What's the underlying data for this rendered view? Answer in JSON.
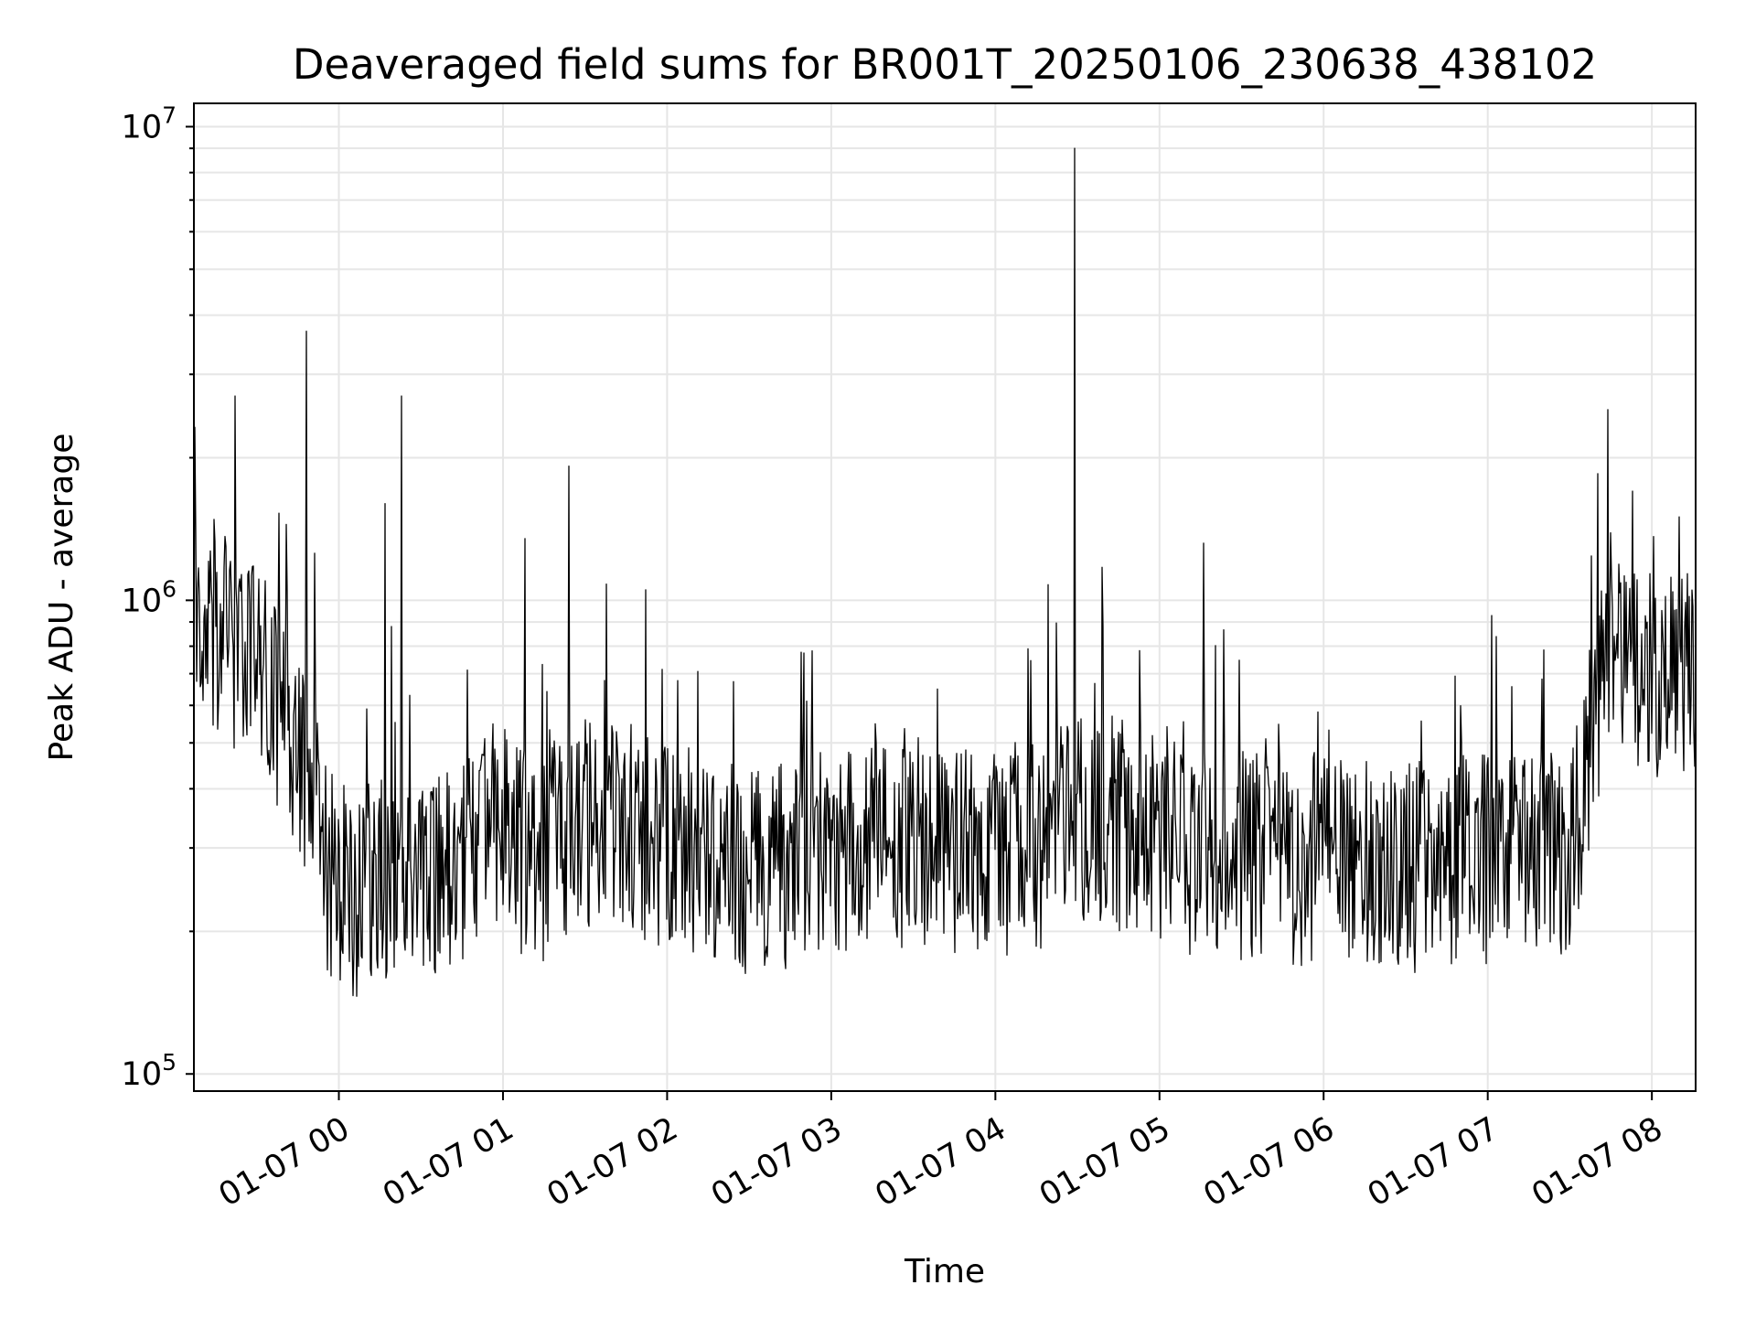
{
  "chart_data": {
    "type": "line",
    "title": "Deaveraged field sums for BR001T_20250106_230638_438102",
    "xlabel": "Time",
    "ylabel": "Peak ADU - average",
    "yscale": "log",
    "ylim": [
      92000,
      11200000
    ],
    "xlim": [
      "2025-01-06 23:07",
      "2025-01-07 08:16"
    ],
    "grid": true,
    "line_color": "#000000",
    "x_ticks": [
      {
        "value": "2025-01-07 00:00",
        "label": "01-07 00"
      },
      {
        "value": "2025-01-07 01:00",
        "label": "01-07 01"
      },
      {
        "value": "2025-01-07 02:00",
        "label": "01-07 02"
      },
      {
        "value": "2025-01-07 03:00",
        "label": "01-07 03"
      },
      {
        "value": "2025-01-07 04:00",
        "label": "01-07 04"
      },
      {
        "value": "2025-01-07 05:00",
        "label": "01-07 05"
      },
      {
        "value": "2025-01-07 06:00",
        "label": "01-07 06"
      },
      {
        "value": "2025-01-07 07:00",
        "label": "01-07 07"
      },
      {
        "value": "2025-01-07 08:00",
        "label": "01-07 08"
      }
    ],
    "y_ticks": [
      {
        "value": 100000,
        "base": "10",
        "exp": "5"
      },
      {
        "value": 1000000,
        "base": "10",
        "exp": "6"
      },
      {
        "value": 10000000,
        "base": "10",
        "exp": "7"
      }
    ],
    "series": [
      {
        "x": [
          "2025-01-06 23:07",
          "2025-01-06 23:15",
          "2025-01-06 23:25",
          "2025-01-06 23:35",
          "2025-01-06 23:42",
          "2025-01-06 23:50",
          "2025-01-06 23:56",
          "2025-01-07 00:05",
          "2025-01-07 00:15",
          "2025-01-07 00:25",
          "2025-01-07 00:35",
          "2025-01-07 00:45",
          "2025-01-07 00:55",
          "2025-01-07 01:05",
          "2025-01-07 01:15",
          "2025-01-07 01:25",
          "2025-01-07 01:35",
          "2025-01-07 01:45",
          "2025-01-07 01:55",
          "2025-01-07 02:10",
          "2025-01-07 02:30",
          "2025-01-07 02:50",
          "2025-01-07 03:10",
          "2025-01-07 03:30",
          "2025-01-07 03:50",
          "2025-01-07 04:10",
          "2025-01-07 04:30",
          "2025-01-07 04:50",
          "2025-01-07 05:10",
          "2025-01-07 05:30",
          "2025-01-07 05:50",
          "2025-01-07 06:10",
          "2025-01-07 06:30",
          "2025-01-07 06:50",
          "2025-01-07 07:05",
          "2025-01-07 07:20",
          "2025-01-07 07:30",
          "2025-01-07 07:38",
          "2025-01-07 07:46",
          "2025-01-07 07:55",
          "2025-01-07 08:05",
          "2025-01-07 08:16"
        ],
        "y": [
          900000,
          850000,
          750000,
          650000,
          520000,
          400000,
          260000,
          240000,
          250000,
          270000,
          260000,
          280000,
          350000,
          300000,
          290000,
          330000,
          340000,
          330000,
          310000,
          300000,
          270000,
          280000,
          300000,
          310000,
          290000,
          290000,
          350000,
          330000,
          300000,
          290000,
          280000,
          290000,
          270000,
          280000,
          290000,
          300000,
          280000,
          500000,
          900000,
          700000,
          650000,
          750000
        ]
      }
    ],
    "spikes": [
      {
        "x": "2025-01-06 23:22",
        "y": 2700000
      },
      {
        "x": "2025-01-06 23:48",
        "y": 3700000
      },
      {
        "x": "2025-01-07 00:17",
        "y": 1600000
      },
      {
        "x": "2025-01-07 00:23",
        "y": 2700000
      },
      {
        "x": "2025-01-07 01:08",
        "y": 1350000
      },
      {
        "x": "2025-01-07 01:24",
        "y": 1920000
      },
      {
        "x": "2025-01-07 04:29",
        "y": 9000000
      },
      {
        "x": "2025-01-07 05:16",
        "y": 1320000
      },
      {
        "x": "2025-01-07 07:53",
        "y": 1700000
      },
      {
        "x": "2025-01-07 08:10",
        "y": 1500000
      }
    ]
  }
}
